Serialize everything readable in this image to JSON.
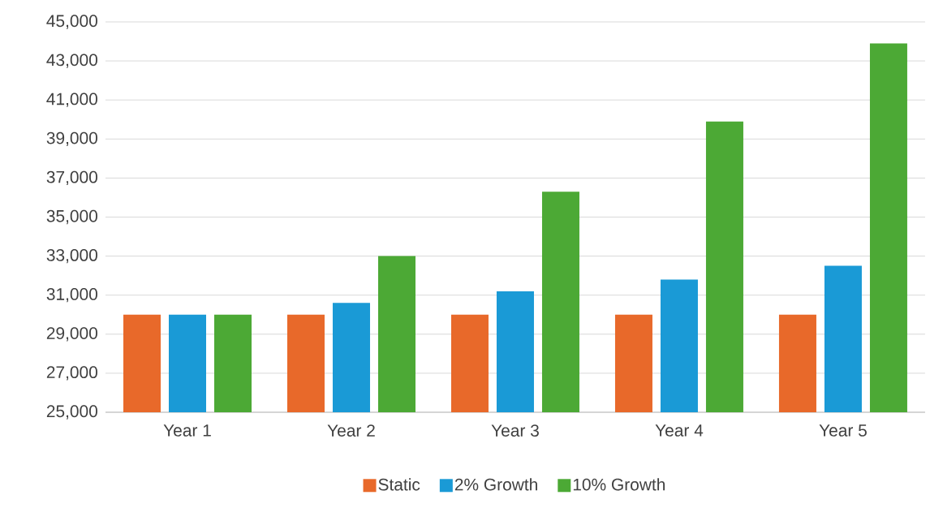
{
  "chart_data": {
    "type": "bar",
    "categories": [
      "Year 1",
      "Year 2",
      "Year 3",
      "Year 4",
      "Year 5"
    ],
    "series": [
      {
        "name": "Static",
        "color": "#e8692a",
        "values": [
          30000,
          30000,
          30000,
          30000,
          30000
        ]
      },
      {
        "name": "2% Growth",
        "color": "#1a9ad6",
        "values": [
          30000,
          30600,
          31200,
          31800,
          32500
        ]
      },
      {
        "name": "10% Growth",
        "color": "#4ca935",
        "values": [
          30000,
          33000,
          36300,
          39900,
          43900
        ]
      }
    ],
    "ylim": [
      25000,
      45000
    ],
    "yticks": [
      {
        "value": 25000,
        "label": "25,000"
      },
      {
        "value": 27000,
        "label": "27,000"
      },
      {
        "value": 29000,
        "label": "29,000"
      },
      {
        "value": 31000,
        "label": "31,000"
      },
      {
        "value": 33000,
        "label": "33,000"
      },
      {
        "value": 35000,
        "label": "35,000"
      },
      {
        "value": 37000,
        "label": "37,000"
      },
      {
        "value": 39000,
        "label": "39,000"
      },
      {
        "value": 41000,
        "label": "41,000"
      },
      {
        "value": 43000,
        "label": "43,000"
      },
      {
        "value": 45000,
        "label": "45,000"
      }
    ],
    "grid": "y",
    "legend": "bottom"
  }
}
